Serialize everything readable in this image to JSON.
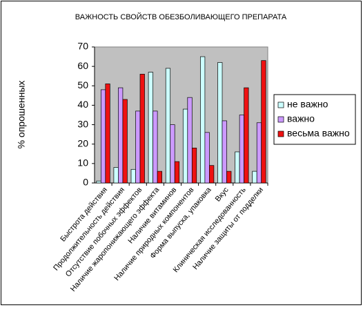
{
  "chart_data": {
    "type": "bar",
    "title": "ВАЖНОСТЬ СВОЙСТВ ОБЕЗБОЛИВАЮЩЕГО ПРЕПАРАТА",
    "y_label": "% опрошенных",
    "categories": [
      "Быстрота действия",
      "Продолжительность действия",
      "Отсутствие побочных эффектов",
      "Наличие жаропонижающего эффекта",
      "Наличие витаминов",
      "Наличие природных компонентов",
      "Форма выпуска, упаковка",
      "Вкус",
      "Клиническая исследованность",
      "Наличие защиты от подделки"
    ],
    "series": [
      {
        "name": "не важно",
        "color": "#ccffff",
        "values": [
          1,
          8,
          7,
          57,
          59,
          38,
          65,
          62,
          16,
          6
        ]
      },
      {
        "name": "важно",
        "color": "#cc99ff",
        "values": [
          48,
          49,
          37,
          37,
          30,
          44,
          26,
          32,
          35,
          31
        ]
      },
      {
        "name": "весьма важно",
        "color": "#ee1111",
        "values": [
          51,
          43,
          56,
          6,
          11,
          18,
          9,
          6,
          49,
          63
        ]
      }
    ],
    "ylim": [
      0,
      70
    ],
    "yticks": [
      0,
      10,
      20,
      30,
      40,
      50,
      60,
      70
    ],
    "legend": "right"
  }
}
